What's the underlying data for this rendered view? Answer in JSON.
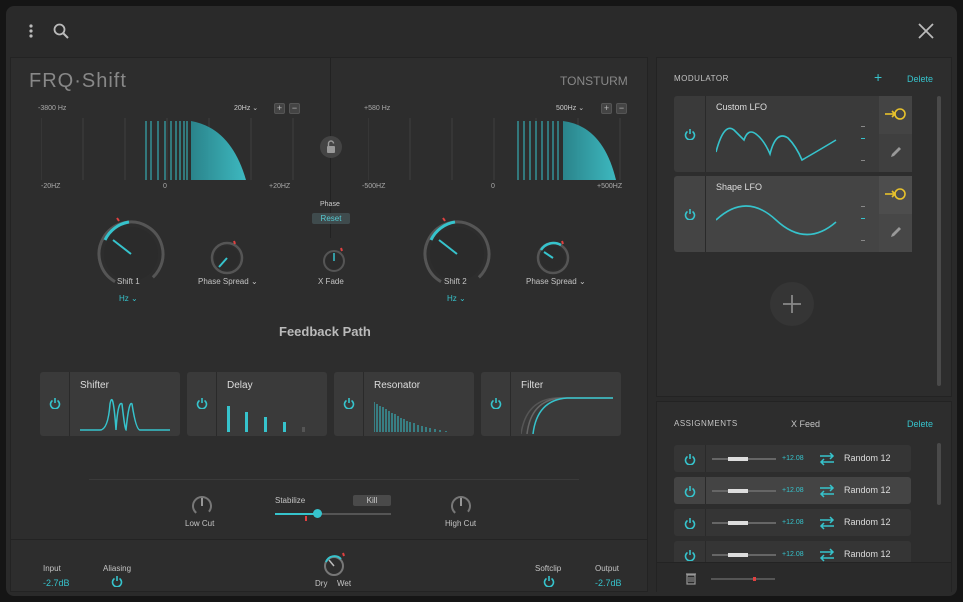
{
  "app": {
    "brand": "FRQ·Shift",
    "maker": "TONSTURM"
  },
  "spectrum_left": {
    "freq": "-3800 Hz",
    "range": "20Hz",
    "ticks": [
      "-20HZ",
      "0",
      "+20HZ"
    ]
  },
  "spectrum_right": {
    "freq": "+580 Hz",
    "range": "500Hz",
    "ticks": [
      "-500HZ",
      "0",
      "+500HZ"
    ]
  },
  "center": {
    "phase_label": "Phase",
    "reset_label": "Reset",
    "xfade_label": "X Fade"
  },
  "knobs": {
    "shift1": "Shift 1",
    "shift1_unit": "Hz",
    "spread1": "Phase Spread",
    "shift2": "Shift 2",
    "shift2_unit": "Hz",
    "spread2": "Phase Spread"
  },
  "feedback_title": "Feedback Path",
  "effects": [
    {
      "name": "Shifter"
    },
    {
      "name": "Delay"
    },
    {
      "name": "Resonator"
    },
    {
      "name": "Filter"
    }
  ],
  "feedback_controls": {
    "low_cut": "Low Cut",
    "stabilize": "Stabilize",
    "kill": "Kill",
    "high_cut": "High Cut"
  },
  "footer": {
    "input_label": "Input",
    "input_value": "-2.7dB",
    "aliasing_label": "Aliasing",
    "dry": "Dry",
    "wet": "Wet",
    "softclip_label": "Softclip",
    "output_label": "Output",
    "output_value": "-2.7dB"
  },
  "modulator": {
    "title": "MODULATOR",
    "add": "+",
    "delete": "Delete",
    "items": [
      {
        "name": "Custom LFO"
      },
      {
        "name": "Shape LFO"
      }
    ]
  },
  "assignments": {
    "title": "ASSIGNMENTS",
    "target": "X Feed",
    "delete": "Delete",
    "rows": [
      {
        "value": "+12.08",
        "source": "Random 12"
      },
      {
        "value": "+12.08",
        "source": "Random 12"
      },
      {
        "value": "+12.08",
        "source": "Random 12"
      },
      {
        "value": "+12.08",
        "source": "Random 12"
      }
    ]
  },
  "colors": {
    "accent": "#36c3cc",
    "yellow": "#e8c22c",
    "red": "#e04040"
  },
  "icons": [
    "menu-dots-icon",
    "search-icon",
    "close-icon",
    "lock-icon",
    "power-icon",
    "link-icon",
    "pencil-icon",
    "swap-icon",
    "trash-icon",
    "plus-icon",
    "chevron-down-icon"
  ]
}
